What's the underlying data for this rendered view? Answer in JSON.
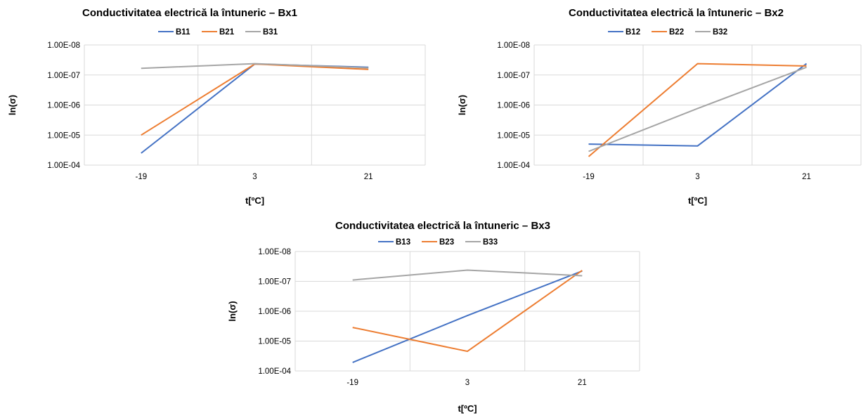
{
  "chart_data": [
    {
      "type": "line",
      "title": "Conductivitatea electrică la întuneric – Bx1",
      "xlabel": "t[ºC]",
      "ylabel": "ln(σ)",
      "categories": [
        "-19",
        "3",
        "21"
      ],
      "y_ticks": [
        "1.00E-08",
        "1.00E-07",
        "1.00E-06",
        "1.00E-05",
        "1.00E-04"
      ],
      "y_scale": "log",
      "y_axis_reversed": true,
      "ylim": [
        1e-08,
        0.0001
      ],
      "grid": true,
      "legend_position": "top",
      "series": [
        {
          "name": "B11",
          "color": "#4472C4",
          "values": [
            4e-05,
            4.3e-08,
            5.5e-08
          ]
        },
        {
          "name": "B21",
          "color": "#ED7D31",
          "values": [
            1e-05,
            4.3e-08,
            6.5e-08
          ]
        },
        {
          "name": "B31",
          "color": "#A5A5A5",
          "values": [
            6e-08,
            4.2e-08,
            5.8e-08
          ]
        }
      ]
    },
    {
      "type": "line",
      "title": "Conductivitatea electrică la întuneric – Bx2",
      "xlabel": "t[ºC]",
      "ylabel": "ln(σ)",
      "categories": [
        "-19",
        "3",
        "21"
      ],
      "y_ticks": [
        "1.00E-08",
        "1.00E-07",
        "1.00E-06",
        "1.00E-05",
        "1.00E-04"
      ],
      "y_scale": "log",
      "y_axis_reversed": true,
      "ylim": [
        1e-08,
        0.0001
      ],
      "grid": true,
      "legend_position": "top",
      "series": [
        {
          "name": "B12",
          "color": "#4472C4",
          "values": [
            2e-05,
            2.3e-05,
            4.2e-08
          ]
        },
        {
          "name": "B22",
          "color": "#ED7D31",
          "values": [
            5.2e-05,
            4.2e-08,
            5e-08
          ]
        },
        {
          "name": "B32",
          "color": "#A5A5A5",
          "values": [
            3.5e-05,
            1.3e-06,
            5.5e-08
          ]
        }
      ]
    },
    {
      "type": "line",
      "title": "Conductivitatea electrică la întuneric – Bx3",
      "xlabel": "t[ºC]",
      "ylabel": "ln(σ)",
      "categories": [
        "-19",
        "3",
        "21"
      ],
      "y_ticks": [
        "1.00E-08",
        "1.00E-07",
        "1.00E-06",
        "1.00E-05",
        "1.00E-04"
      ],
      "y_scale": "log",
      "y_axis_reversed": true,
      "ylim": [
        1e-08,
        0.0001
      ],
      "grid": true,
      "legend_position": "top",
      "series": [
        {
          "name": "B13",
          "color": "#4472C4",
          "values": [
            5.2e-05,
            1.4e-06,
            4.5e-08
          ]
        },
        {
          "name": "B23",
          "color": "#ED7D31",
          "values": [
            3.5e-06,
            2.2e-05,
            4.3e-08
          ]
        },
        {
          "name": "B33",
          "color": "#A5A5A5",
          "values": [
            9e-08,
            4.2e-08,
            6.5e-08
          ]
        }
      ]
    }
  ]
}
